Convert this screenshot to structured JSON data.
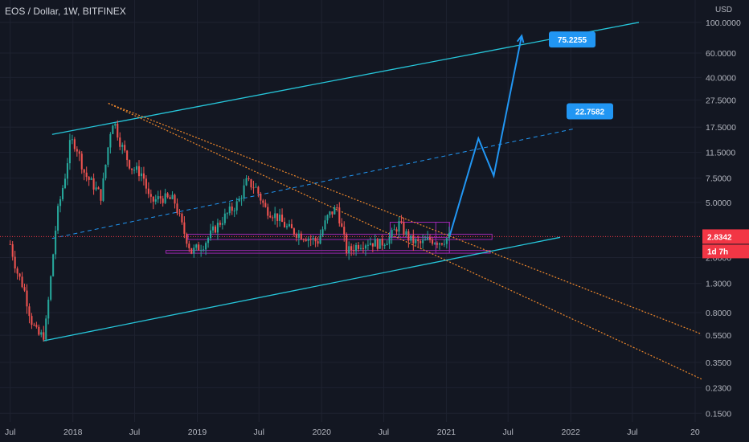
{
  "header": {
    "title": "EOS / Dollar, 1W, BITFINEX"
  },
  "price_axis": {
    "unit": "USD",
    "ticks": [
      {
        "label": "100.0000",
        "value": 100
      },
      {
        "label": "60.0000",
        "value": 60
      },
      {
        "label": "40.0000",
        "value": 40
      },
      {
        "label": "27.5000",
        "value": 27.5
      },
      {
        "label": "17.5000",
        "value": 17.5
      },
      {
        "label": "11.5000",
        "value": 11.5
      },
      {
        "label": "7.5000",
        "value": 7.5
      },
      {
        "label": "5.0000",
        "value": 5
      },
      {
        "label": "2.0000",
        "value": 2
      },
      {
        "label": "1.3000",
        "value": 1.3
      },
      {
        "label": "0.8000",
        "value": 0.8
      },
      {
        "label": "0.5500",
        "value": 0.55
      },
      {
        "label": "0.3500",
        "value": 0.35
      },
      {
        "label": "0.2300",
        "value": 0.23
      },
      {
        "label": "0.1500",
        "value": 0.15
      }
    ],
    "current_price": {
      "label": "2.8342",
      "value": 2.8342,
      "color": "#f23645"
    },
    "countdown": {
      "label": "1d 7h",
      "color": "#f23645"
    }
  },
  "time_axis": {
    "ticks": [
      {
        "label": "Jul",
        "date": "2017-07-01"
      },
      {
        "label": "2018",
        "date": "2018-01-01"
      },
      {
        "label": "Jul",
        "date": "2018-07-01"
      },
      {
        "label": "2019",
        "date": "2019-01-01"
      },
      {
        "label": "Jul",
        "date": "2019-07-01"
      },
      {
        "label": "2020",
        "date": "2020-01-01"
      },
      {
        "label": "Jul",
        "date": "2020-07-01"
      },
      {
        "label": "2021",
        "date": "2021-01-01"
      },
      {
        "label": "Jul",
        "date": "2021-07-01"
      },
      {
        "label": "2022",
        "date": "2022-01-01"
      },
      {
        "label": "Jul",
        "date": "2022-07-01"
      },
      {
        "label": "20",
        "date": "2023-01-01"
      }
    ]
  },
  "colors": {
    "background": "#131722",
    "up": "#26a69a",
    "down": "#ef5350",
    "channel": "#26c6da",
    "projection": "#2196f3",
    "trendline": "#f0882b",
    "box": "#9c27b0",
    "grid": "#1e2230"
  },
  "annotations": {
    "target_high": {
      "label": "75.2255",
      "value": 75.2255
    },
    "target_mid": {
      "label": "22.7582",
      "value": 22.7582
    }
  },
  "chart_data": {
    "type": "candlestick",
    "scale": "log",
    "symbol": "EOS / Dollar",
    "interval": "1W",
    "exchange": "BITFINEX",
    "ylim": [
      0.13,
      145
    ],
    "xlim": [
      "2017-06-01",
      "2023-01-20"
    ],
    "price_path": [
      [
        "2017-07-01",
        2.5
      ],
      [
        "2017-07-20",
        1.6
      ],
      [
        "2017-08-10",
        1.2
      ],
      [
        "2017-09-01",
        0.7
      ],
      [
        "2017-09-20",
        0.55
      ],
      [
        "2017-10-10",
        0.55
      ],
      [
        "2017-10-25",
        1.2
      ],
      [
        "2017-11-15",
        4.0
      ],
      [
        "2017-12-10",
        8.0
      ],
      [
        "2017-12-25",
        14.0
      ],
      [
        "2018-01-10",
        13.0
      ],
      [
        "2018-02-05",
        8.0
      ],
      [
        "2018-03-05",
        6.5
      ],
      [
        "2018-03-25",
        5.5
      ],
      [
        "2018-04-20",
        16.0
      ],
      [
        "2018-04-30",
        20.0
      ],
      [
        "2018-05-20",
        13.5
      ],
      [
        "2018-06-20",
        9.0
      ],
      [
        "2018-07-25",
        8.0
      ],
      [
        "2018-08-15",
        5.0
      ],
      [
        "2018-09-15",
        5.4
      ],
      [
        "2018-10-25",
        5.2
      ],
      [
        "2018-11-20",
        3.2
      ],
      [
        "2018-12-15",
        2.2
      ],
      [
        "2019-01-20",
        2.5
      ],
      [
        "2019-02-20",
        3.2
      ],
      [
        "2019-03-25",
        4.0
      ],
      [
        "2019-05-01",
        5.0
      ],
      [
        "2019-05-25",
        7.0
      ],
      [
        "2019-06-20",
        6.5
      ],
      [
        "2019-07-20",
        4.5
      ],
      [
        "2019-08-20",
        4.0
      ],
      [
        "2019-09-20",
        3.3
      ],
      [
        "2019-10-20",
        3.0
      ],
      [
        "2019-11-20",
        2.8
      ],
      [
        "2019-12-20",
        2.6
      ],
      [
        "2020-01-20",
        4.0
      ],
      [
        "2020-02-15",
        4.6
      ],
      [
        "2020-03-15",
        2.2
      ],
      [
        "2020-04-20",
        2.5
      ],
      [
        "2020-05-20",
        2.6
      ],
      [
        "2020-06-20",
        2.5
      ],
      [
        "2020-07-20",
        2.8
      ],
      [
        "2020-08-15",
        3.5
      ],
      [
        "2020-09-15",
        2.7
      ],
      [
        "2020-10-15",
        2.5
      ],
      [
        "2020-11-15",
        2.7
      ],
      [
        "2020-12-15",
        2.6
      ],
      [
        "2021-01-10",
        2.8342
      ]
    ],
    "channel_upper": [
      [
        "2017-11-01",
        15.5
      ],
      [
        "2022-07-20",
        100
      ]
    ],
    "channel_lower": [
      [
        "2017-10-05",
        0.5
      ],
      [
        "2021-12-01",
        2.8
      ]
    ],
    "channel_mid_dashed": [
      [
        "2017-11-01",
        2.75
      ],
      [
        "2022-01-10",
        17.0
      ]
    ],
    "trendline_upper": [
      [
        "2018-04-15",
        26
      ],
      [
        "2023-01-20",
        0.56
      ]
    ],
    "trendline_lower": [
      [
        "2018-04-15",
        26
      ],
      [
        "2023-01-20",
        0.265
      ]
    ],
    "boxes": [
      {
        "x0": "2018-12-05",
        "x1": "2021-05-15",
        "y0": 2.7,
        "y1": 2.95
      },
      {
        "x0": "2018-10-01",
        "x1": "2021-05-10",
        "y0": 2.15,
        "y1": 2.25
      },
      {
        "x0": "2020-07-20",
        "x1": "2021-01-10",
        "y0": 2.8,
        "y1": 3.6
      },
      {
        "x0": "2020-12-01",
        "x1": "2021-01-10",
        "y0": 2.15,
        "y1": 3.6
      }
    ],
    "projection_path": [
      [
        "2021-01-10",
        2.8342
      ],
      [
        "2021-04-05",
        14.5
      ],
      [
        "2021-05-20",
        7.8
      ],
      [
        "2021-08-10",
        80
      ]
    ]
  }
}
